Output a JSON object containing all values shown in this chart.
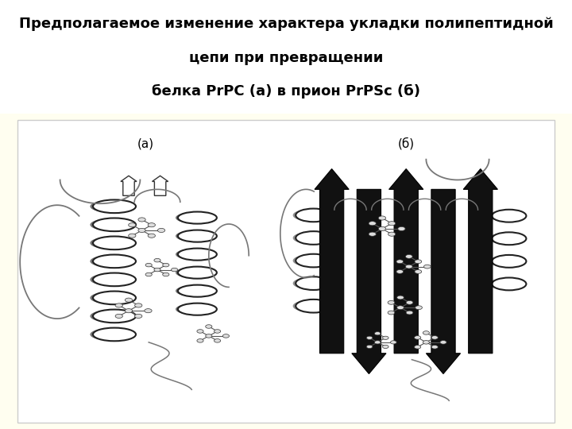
{
  "title_line1": "Предполагаемое изменение характера укладки полипептидной",
  "title_line2": "цепи при превращении",
  "title_line3": "белка PrPC (а) в прион PrPSc (б)",
  "title_fontsize": 13,
  "label_a": "(а)",
  "label_b": "(б)",
  "bg_color_top": "#ffffff",
  "bg_color_bottom": "#fffef0",
  "fig_width": 7.2,
  "fig_height": 5.4,
  "dpi": 100
}
